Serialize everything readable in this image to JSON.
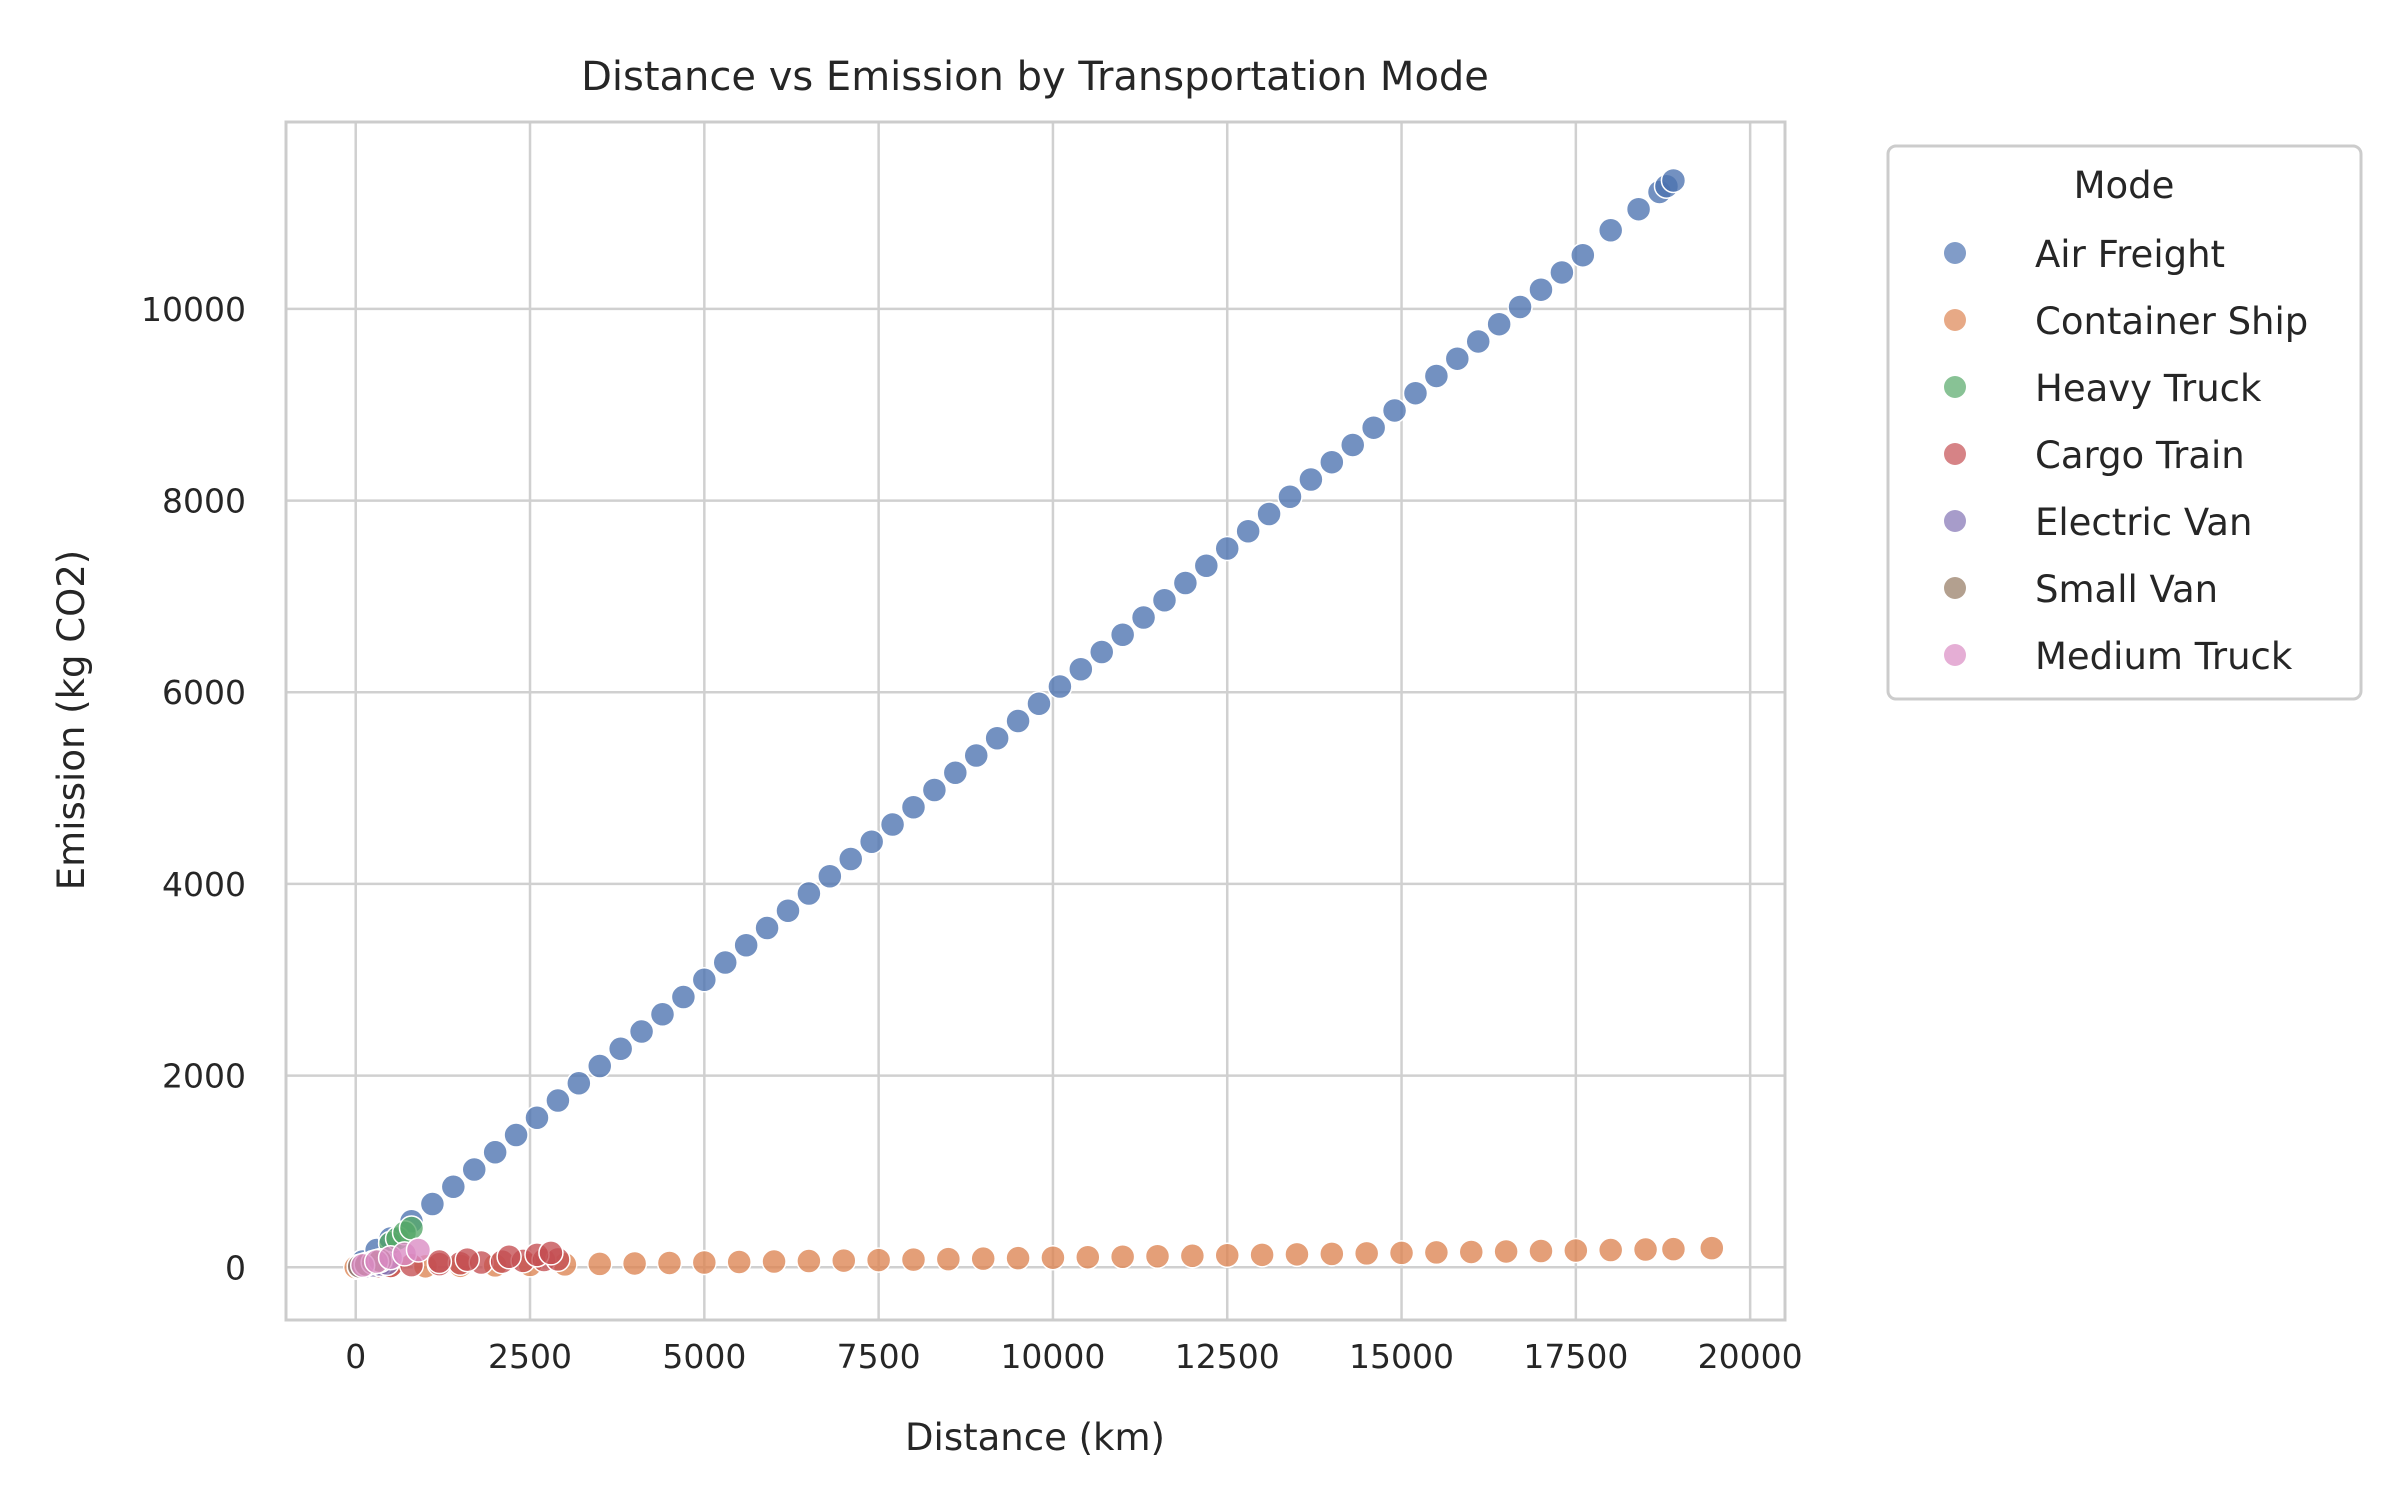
{
  "chart_data": {
    "type": "scatter",
    "title": "Distance vs Emission by Transportation Mode",
    "xlabel": "Distance (km)",
    "ylabel": "Emission (kg CO2)",
    "xlim": [
      -1000,
      20500
    ],
    "ylim": [
      -550,
      11950
    ],
    "xticks": [
      0,
      2500,
      5000,
      7500,
      10000,
      12500,
      15000,
      17500,
      20000
    ],
    "yticks": [
      0,
      2000,
      4000,
      6000,
      8000,
      10000
    ],
    "grid": true,
    "legend": {
      "title": "Mode",
      "placement": "outside-upper-right"
    },
    "series": [
      {
        "name": "Air Freight",
        "color": "#4c72b0",
        "points": [
          [
            100,
            60
          ],
          [
            300,
            180
          ],
          [
            500,
            300
          ],
          [
            800,
            480
          ],
          [
            1100,
            660
          ],
          [
            1400,
            840
          ],
          [
            1700,
            1020
          ],
          [
            2000,
            1200
          ],
          [
            2300,
            1380
          ],
          [
            2600,
            1560
          ],
          [
            2900,
            1740
          ],
          [
            3200,
            1920
          ],
          [
            3500,
            2100
          ],
          [
            3800,
            2280
          ],
          [
            4100,
            2460
          ],
          [
            4400,
            2640
          ],
          [
            4700,
            2820
          ],
          [
            5000,
            3000
          ],
          [
            5300,
            3180
          ],
          [
            5600,
            3360
          ],
          [
            5900,
            3540
          ],
          [
            6200,
            3720
          ],
          [
            6500,
            3900
          ],
          [
            6800,
            4080
          ],
          [
            7100,
            4260
          ],
          [
            7400,
            4440
          ],
          [
            7700,
            4620
          ],
          [
            8000,
            4800
          ],
          [
            8300,
            4980
          ],
          [
            8600,
            5160
          ],
          [
            8900,
            5340
          ],
          [
            9200,
            5520
          ],
          [
            9500,
            5700
          ],
          [
            9800,
            5880
          ],
          [
            10100,
            6060
          ],
          [
            10400,
            6240
          ],
          [
            10700,
            6420
          ],
          [
            11000,
            6600
          ],
          [
            11300,
            6780
          ],
          [
            11600,
            6960
          ],
          [
            11900,
            7140
          ],
          [
            12200,
            7320
          ],
          [
            12500,
            7500
          ],
          [
            12800,
            7680
          ],
          [
            13100,
            7860
          ],
          [
            13400,
            8040
          ],
          [
            13700,
            8220
          ],
          [
            14000,
            8400
          ],
          [
            14300,
            8580
          ],
          [
            14600,
            8760
          ],
          [
            14900,
            8940
          ],
          [
            15200,
            9120
          ],
          [
            15500,
            9300
          ],
          [
            15800,
            9480
          ],
          [
            16100,
            9660
          ],
          [
            16400,
            9840
          ],
          [
            16700,
            10020
          ],
          [
            17000,
            10200
          ],
          [
            17300,
            10380
          ],
          [
            17600,
            10560
          ],
          [
            18000,
            10820
          ],
          [
            18400,
            11040
          ],
          [
            18700,
            11220
          ],
          [
            18800,
            11280
          ],
          [
            18900,
            11340
          ]
        ]
      },
      {
        "name": "Container Ship",
        "color": "#dd8452",
        "points": [
          [
            0,
            0
          ],
          [
            500,
            5
          ],
          [
            1000,
            10
          ],
          [
            1500,
            15
          ],
          [
            2000,
            20
          ],
          [
            2500,
            25
          ],
          [
            3000,
            30
          ],
          [
            3500,
            35
          ],
          [
            4000,
            40
          ],
          [
            4500,
            45
          ],
          [
            5000,
            50
          ],
          [
            5500,
            55
          ],
          [
            6000,
            60
          ],
          [
            6500,
            65
          ],
          [
            7000,
            70
          ],
          [
            7500,
            75
          ],
          [
            8000,
            80
          ],
          [
            8500,
            85
          ],
          [
            9000,
            90
          ],
          [
            9500,
            95
          ],
          [
            10000,
            100
          ],
          [
            10500,
            105
          ],
          [
            11000,
            110
          ],
          [
            11500,
            115
          ],
          [
            12000,
            120
          ],
          [
            12500,
            125
          ],
          [
            13000,
            130
          ],
          [
            13500,
            135
          ],
          [
            14000,
            140
          ],
          [
            14500,
            145
          ],
          [
            15000,
            150
          ],
          [
            15500,
            155
          ],
          [
            16000,
            160
          ],
          [
            16500,
            165
          ],
          [
            17000,
            170
          ],
          [
            17500,
            175
          ],
          [
            18000,
            180
          ],
          [
            18500,
            185
          ],
          [
            18900,
            189
          ],
          [
            19450,
            200
          ]
        ]
      },
      {
        "name": "Heavy Truck",
        "color": "#55a868",
        "points": [
          [
            500,
            250
          ],
          [
            600,
            300
          ],
          [
            700,
            360
          ],
          [
            800,
            410
          ]
        ]
      },
      {
        "name": "Cargo Train",
        "color": "#c44e52",
        "points": [
          [
            100,
            3
          ],
          [
            300,
            9
          ],
          [
            500,
            14
          ],
          [
            800,
            22
          ],
          [
            1200,
            33
          ],
          [
            1500,
            42
          ],
          [
            1800,
            50
          ],
          [
            2100,
            59
          ],
          [
            2400,
            67
          ],
          [
            2700,
            76
          ],
          [
            2900,
            82
          ],
          [
            2200,
            110
          ],
          [
            2600,
            130
          ],
          [
            2800,
            150
          ],
          [
            1600,
            80
          ],
          [
            1200,
            60
          ]
        ]
      },
      {
        "name": "Electric Van",
        "color": "#8172b3",
        "points": [
          [
            50,
            5
          ],
          [
            150,
            12
          ],
          [
            250,
            20
          ],
          [
            350,
            30
          ],
          [
            450,
            40
          ]
        ]
      },
      {
        "name": "Small Van",
        "color": "#937860",
        "points": [
          [
            50,
            10
          ],
          [
            150,
            30
          ],
          [
            250,
            50
          ],
          [
            350,
            70
          ]
        ]
      },
      {
        "name": "Medium Truck",
        "color": "#da8bc3",
        "points": [
          [
            100,
            20
          ],
          [
            300,
            60
          ],
          [
            500,
            100
          ],
          [
            700,
            140
          ],
          [
            900,
            180
          ]
        ]
      }
    ]
  }
}
